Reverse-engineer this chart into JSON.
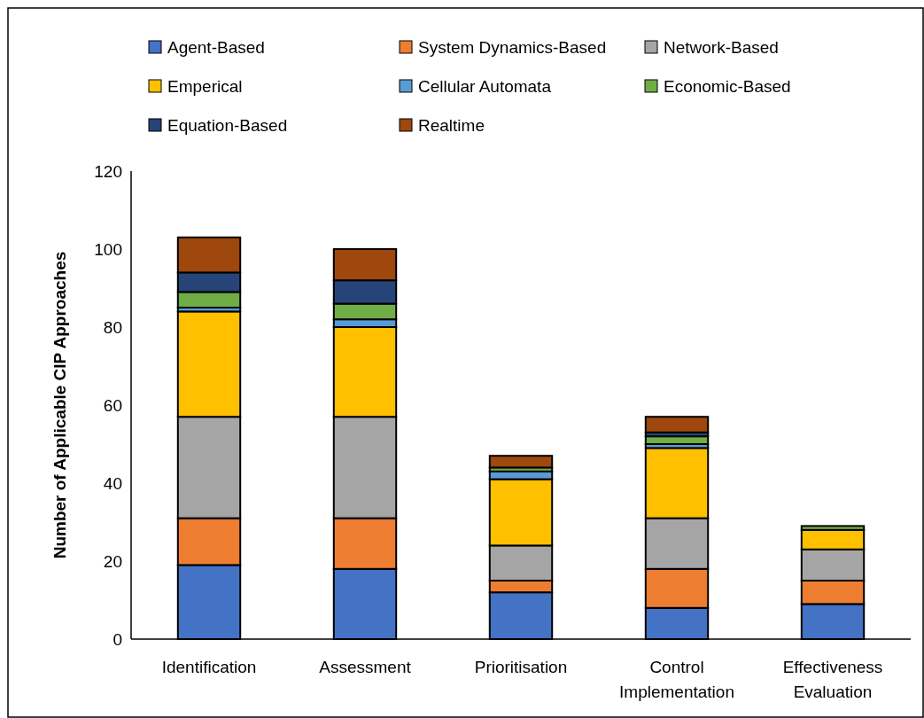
{
  "chart_data": {
    "type": "bar",
    "stacked": true,
    "ylabel": "Number of Applicable CIP Approaches",
    "categories": [
      "Identification",
      "Assessment",
      "Prioritisation",
      "Control Implementation",
      "Effectiveness Evaluation"
    ],
    "ylim": [
      0,
      120
    ],
    "yticks": [
      0,
      20,
      40,
      60,
      80,
      100,
      120
    ],
    "grid": false,
    "legend": "top",
    "series": [
      {
        "name": "Agent-Based",
        "color": "#4472c4",
        "values": [
          19,
          18,
          12,
          8,
          9
        ]
      },
      {
        "name": "System Dynamics-Based",
        "color": "#ed7d31",
        "values": [
          12,
          13,
          3,
          10,
          6
        ]
      },
      {
        "name": "Network-Based",
        "color": "#a5a5a5",
        "values": [
          26,
          26,
          9,
          13,
          8
        ]
      },
      {
        "name": "Emperical",
        "color": "#ffc000",
        "values": [
          27,
          23,
          17,
          18,
          5
        ]
      },
      {
        "name": "Cellular Automata",
        "color": "#5b9bd5",
        "values": [
          1,
          2,
          2,
          1,
          0
        ]
      },
      {
        "name": "Economic-Based",
        "color": "#70ad47",
        "values": [
          4,
          4,
          1,
          2,
          1
        ]
      },
      {
        "name": "Equation-Based",
        "color": "#264478",
        "values": [
          5,
          6,
          0,
          1,
          0
        ]
      },
      {
        "name": "Realtime",
        "color": "#9e480e",
        "values": [
          9,
          8,
          3,
          4,
          0
        ]
      }
    ]
  }
}
